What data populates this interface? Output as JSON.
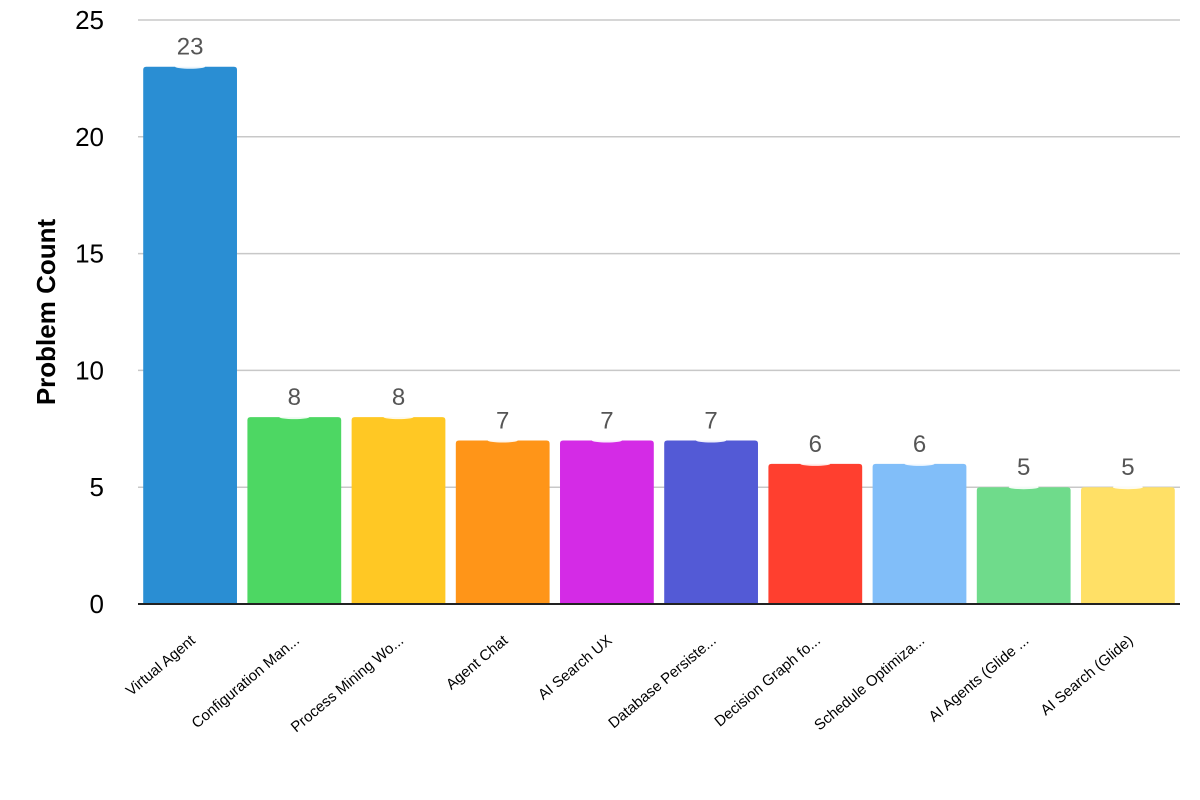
{
  "chart_data": {
    "type": "bar",
    "title": "",
    "xlabel": "",
    "ylabel": "Problem Count",
    "ylim": [
      0,
      25
    ],
    "yticks": [
      0,
      5,
      10,
      15,
      20,
      25
    ],
    "grid": true,
    "categories": [
      "Virtual Agent",
      "Configuration Man...",
      "Process Mining Wo...",
      "Agent Chat",
      "AI Search UX",
      "Database Persiste...",
      "Decision Graph fo...",
      "Schedule Optimiza...",
      "AI Agents (Glide ...",
      "AI Search (Glide)"
    ],
    "values": [
      23,
      8,
      8,
      7,
      7,
      7,
      6,
      6,
      5,
      5
    ],
    "colors": [
      "#2A8ED3",
      "#4DD763",
      "#FFC824",
      "#FF9518",
      "#D42BE6",
      "#535AD6",
      "#FF3F2F",
      "#81BEF9",
      "#6FDB8B",
      "#FFE066"
    ]
  }
}
